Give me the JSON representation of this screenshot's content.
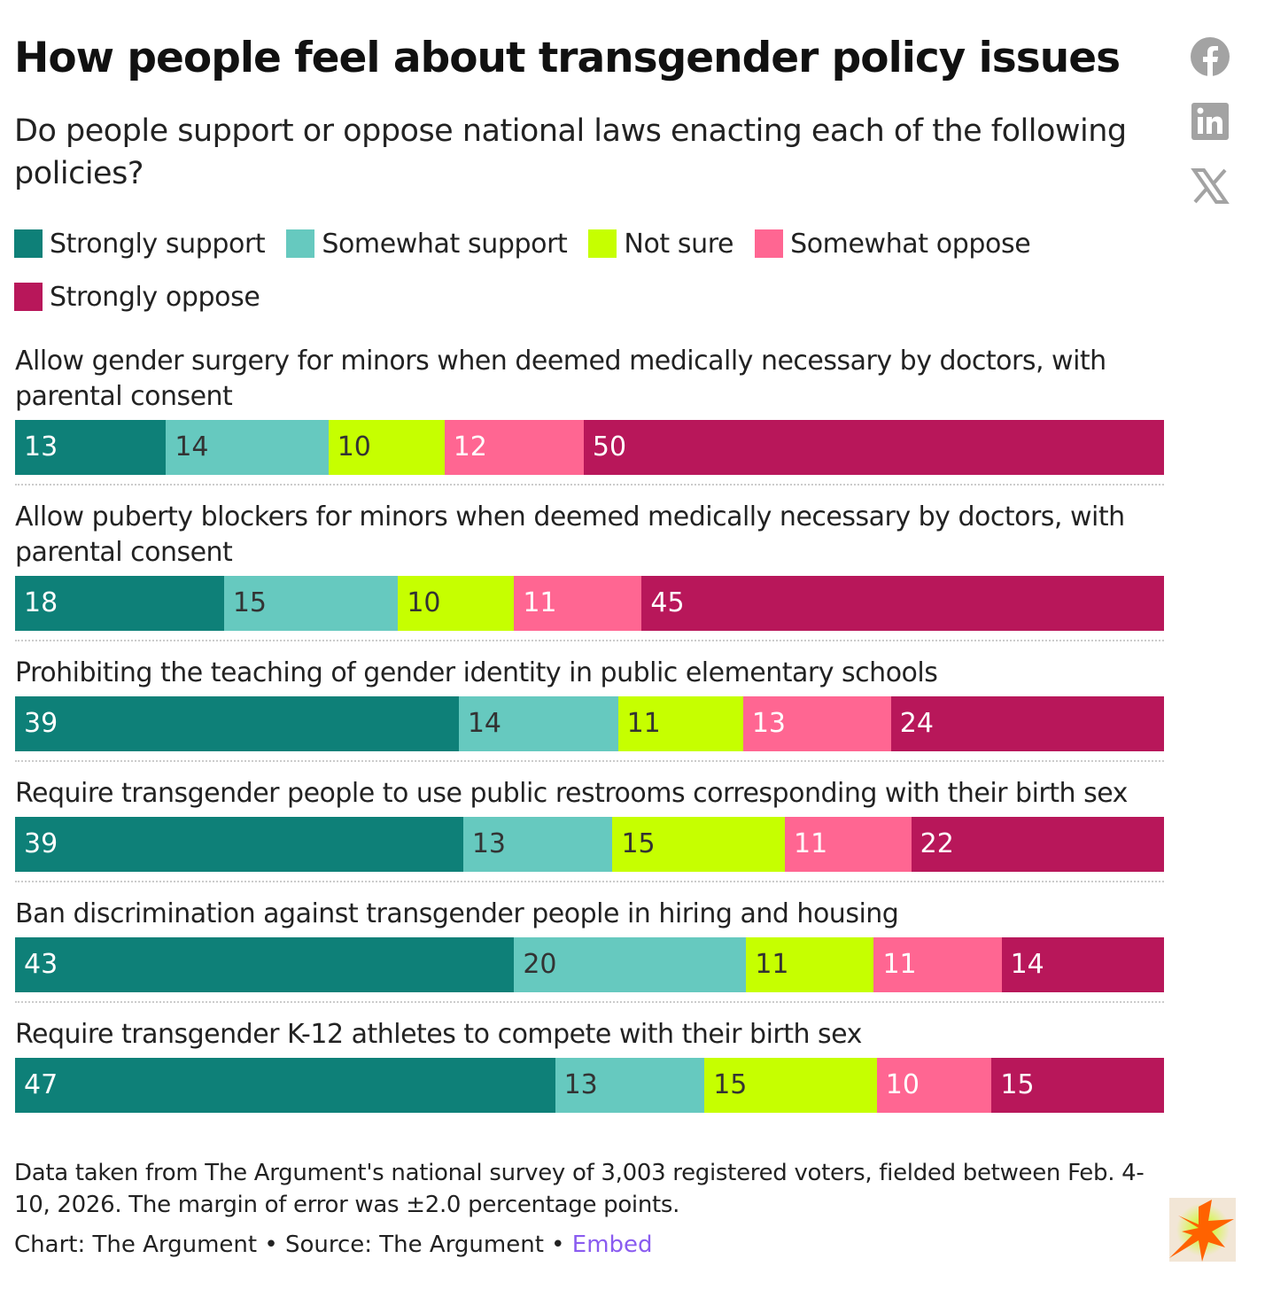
{
  "title": "How people feel about transgender policy issues",
  "subtitle": "Do people support or oppose national laws enacting each of the following policies?",
  "footnote": "Data taken from The Argument's national survey of 3,003 registered voters, fielded between Feb. 4-10, 2026. The margin of error was ±2.0 percentage points.",
  "credit": {
    "chart": "Chart: The Argument",
    "sep": " • ",
    "source": "Source: The Argument",
    "embed": "Embed"
  },
  "social": [
    "facebook-icon",
    "linkedin-icon",
    "x-icon"
  ],
  "chart_data": {
    "type": "bar",
    "orientation": "horizontal-stacked-100",
    "series": [
      {
        "name": "Strongly support",
        "color": "#0e8078",
        "text": "#fff"
      },
      {
        "name": "Somewhat support",
        "color": "#66c9bf",
        "text": "#333"
      },
      {
        "name": "Not sure",
        "color": "#c6ff00",
        "text": "#333"
      },
      {
        "name": "Somewhat oppose",
        "color": "#ff6692",
        "text": "#fff"
      },
      {
        "name": "Strongly oppose",
        "color": "#b8175a",
        "text": "#fff"
      }
    ],
    "categories": [
      {
        "label": "Allow gender surgery for minors when deemed medically necessary by doctors, with parental consent",
        "values": [
          13,
          14,
          10,
          12,
          50
        ]
      },
      {
        "label": "Allow puberty blockers for minors when deemed medically necessary by doctors, with parental consent",
        "values": [
          18,
          15,
          10,
          11,
          45
        ]
      },
      {
        "label": "Prohibiting the teaching of gender identity in public elementary schools",
        "values": [
          39,
          14,
          11,
          13,
          24
        ]
      },
      {
        "label": "Require transgender people to use public restrooms corresponding with their birth sex",
        "values": [
          39,
          13,
          15,
          11,
          22
        ]
      },
      {
        "label": "Ban discrimination against transgender people in hiring and housing",
        "values": [
          43,
          20,
          11,
          11,
          14
        ]
      },
      {
        "label": "Require transgender K-12 athletes to compete with their birth sex",
        "values": [
          47,
          13,
          15,
          10,
          15
        ]
      }
    ]
  }
}
